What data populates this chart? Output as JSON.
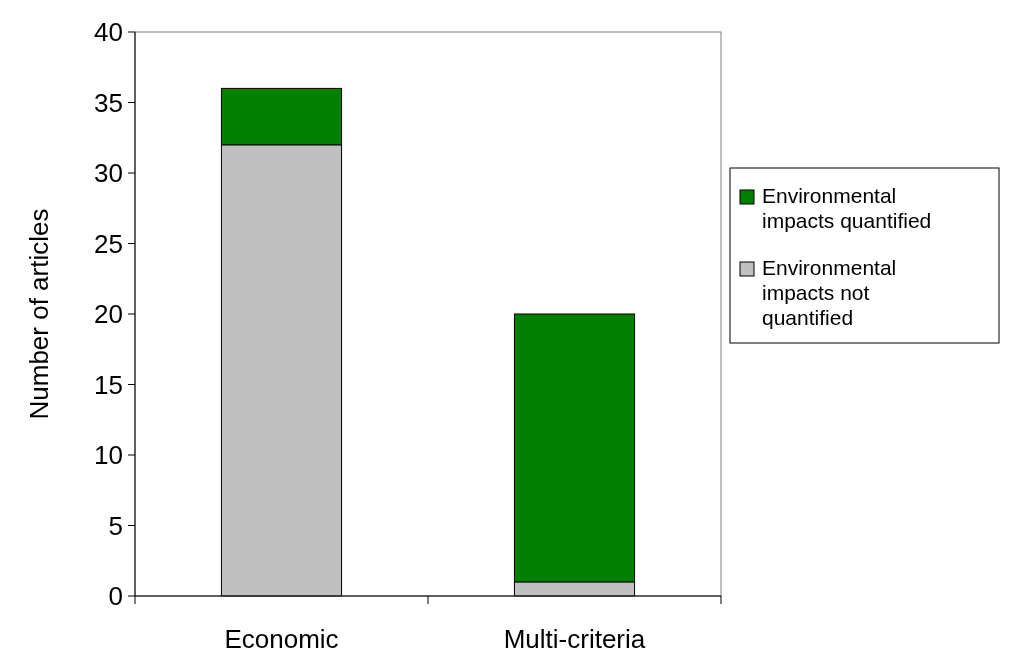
{
  "chart_data": {
    "type": "bar",
    "ylabel": "Number of articles",
    "categories": [
      "Economic",
      "Multi-criteria"
    ],
    "stacked": true,
    "series": [
      {
        "name": "Environmental impacts not quantified",
        "color": "#c0c0c0",
        "values": [
          32,
          1
        ]
      },
      {
        "name": "Environmental impacts quantified",
        "color": "#008000",
        "values": [
          4,
          19
        ]
      }
    ],
    "ylim": [
      0,
      40
    ],
    "yticks": [
      0,
      5,
      10,
      15,
      20,
      25,
      30,
      35,
      40
    ],
    "grid": false,
    "legend": "right"
  }
}
